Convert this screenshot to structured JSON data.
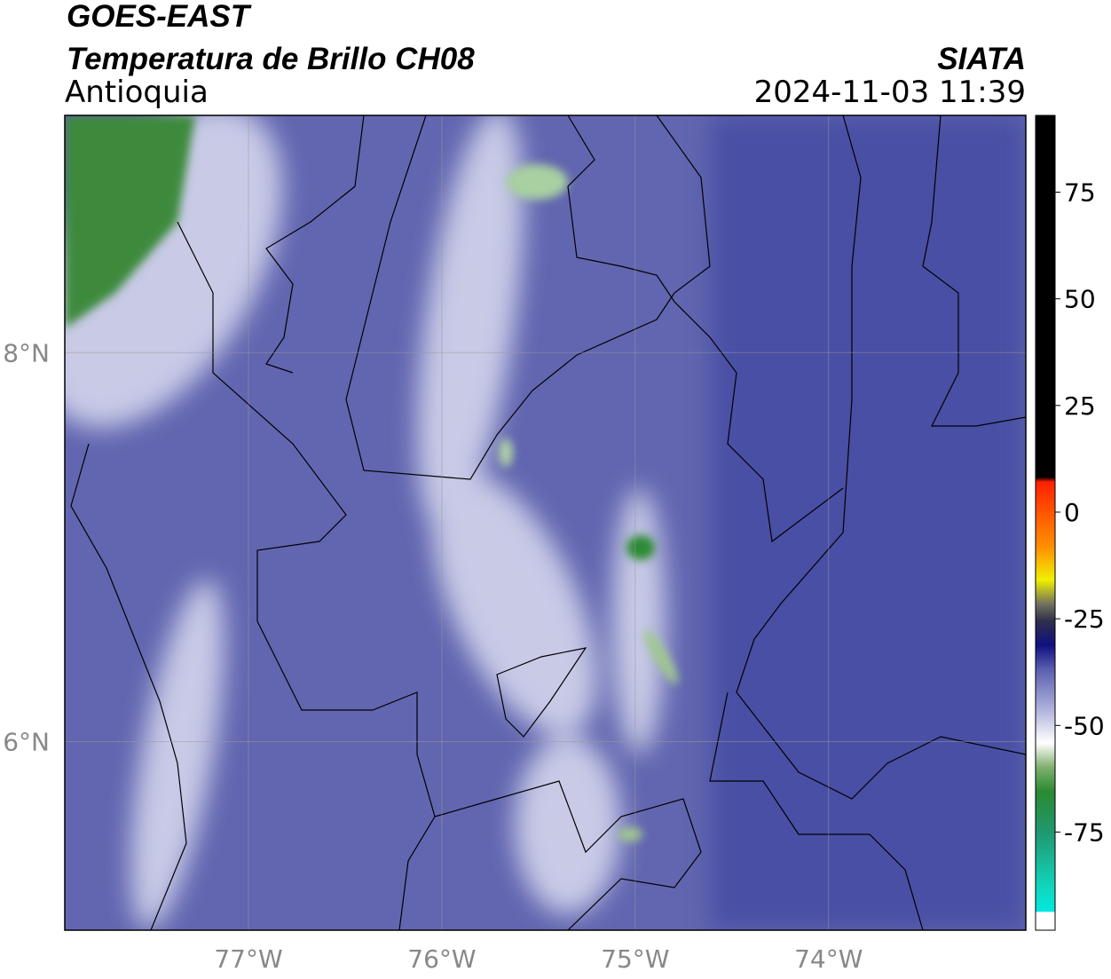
{
  "header": {
    "title": "GOES-EAST",
    "subtitle": "Temperatura de Brillo CH08",
    "region": "Antioquia",
    "source": "SIATA",
    "datetime": "2024-11-03 11:39"
  },
  "map": {
    "xlim": [
      -77.95,
      -72.98
    ],
    "ylim": [
      5.03,
      9.22
    ],
    "xticks": [
      {
        "value": -77,
        "label": "77°W"
      },
      {
        "value": -76,
        "label": "76°W"
      },
      {
        "value": -75,
        "label": "75°W"
      },
      {
        "value": -74,
        "label": "74°W"
      }
    ],
    "yticks": [
      {
        "value": 8,
        "label": "8°N"
      },
      {
        "value": 6,
        "label": "6°N"
      }
    ],
    "grid": true
  },
  "colorbar": {
    "lim": [
      -98,
      93
    ],
    "ticks": [
      75,
      50,
      25,
      0,
      -25,
      -50,
      -75
    ]
  }
}
